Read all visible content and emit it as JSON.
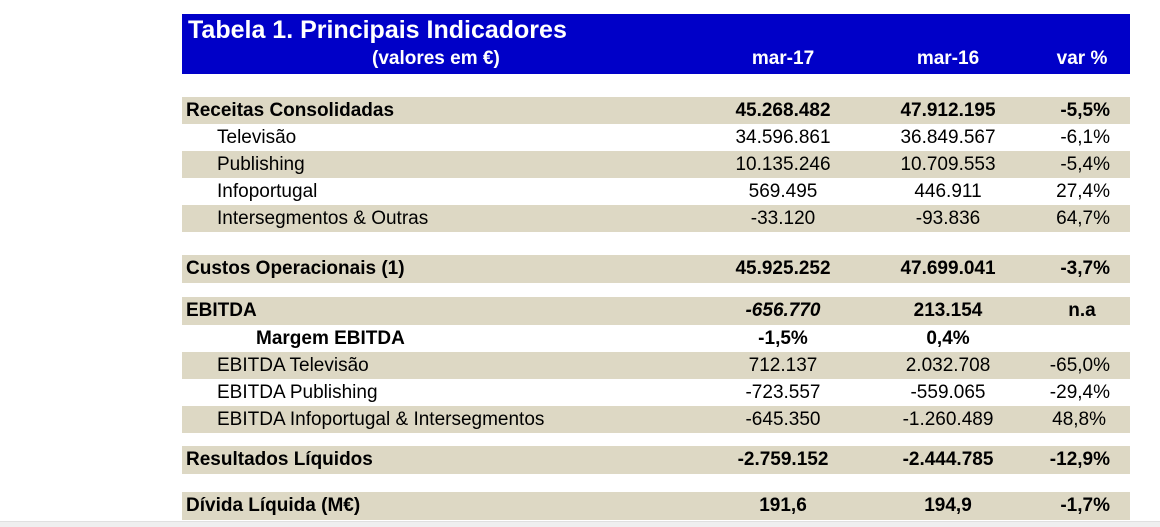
{
  "header": {
    "title": "Tabela 1. Principais Indicadores",
    "subtitle": "(valores em €)",
    "col1": "mar-17",
    "col2": "mar-16",
    "col3": "var %"
  },
  "rows": [
    {
      "label": "Receitas Consolidadas",
      "mar17": "45.268.482",
      "mar16": "47.912.195",
      "var": "-5,5%"
    },
    {
      "label": "Televisão",
      "mar17": "34.596.861",
      "mar16": "36.849.567",
      "var": "-6,1%"
    },
    {
      "label": "Publishing",
      "mar17": "10.135.246",
      "mar16": "10.709.553",
      "var": "-5,4%"
    },
    {
      "label": "Infoportugal",
      "mar17": "569.495",
      "mar16": "446.911",
      "var": "27,4%"
    },
    {
      "label": "Intersegmentos & Outras",
      "mar17": "-33.120",
      "mar16": "-93.836",
      "var": "64,7%"
    },
    {
      "label": "Custos Operacionais (1)",
      "mar17": "45.925.252",
      "mar16": "47.699.041",
      "var": "-3,7%"
    },
    {
      "label": "EBITDA",
      "mar17": "-656.770",
      "mar16": "213.154",
      "var": "n.a"
    },
    {
      "label": "Margem EBITDA",
      "mar17": "-1,5%",
      "mar16": "0,4%"
    },
    {
      "label": "EBITDA Televisão",
      "mar17": "712.137",
      "mar16": "2.032.708",
      "var": "-65,0%"
    },
    {
      "label": "EBITDA Publishing",
      "mar17": "-723.557",
      "mar16": "-559.065",
      "var": "-29,4%"
    },
    {
      "label": "EBITDA Infoportugal & Intersegmentos",
      "mar17": "-645.350",
      "mar16": "-1.260.489",
      "var": "48,8%"
    },
    {
      "label": "Resultados Líquidos",
      "mar17": "-2.759.152",
      "mar16": "-2.444.785",
      "var": "-12,9%"
    },
    {
      "label": "Dívida Líquida (M€)",
      "mar17": "191,6",
      "mar16": "194,9",
      "var": "-1,7%"
    }
  ],
  "colors": {
    "header_bg": "#0000c8",
    "band": "#ddd8c4"
  }
}
